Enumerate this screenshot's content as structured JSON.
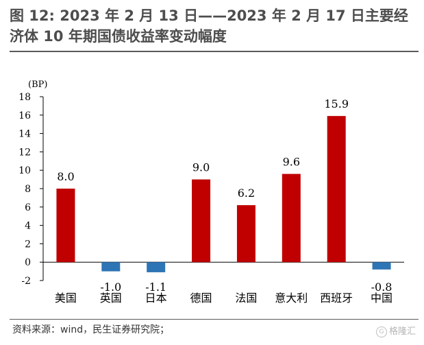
{
  "title": "图 12: 2023 年 2 月 13 日——2023 年 2 月 17 日主要经济体 10 年期国债收益率变动幅度",
  "source": "资料来源：wind，民生证券研究院；",
  "watermark": "格隆汇",
  "colors": {
    "positive": "#C00000",
    "negative": "#2E75B6",
    "axis": "#000000"
  },
  "chart_data": {
    "type": "bar",
    "categories": [
      "美国",
      "英国",
      "日本",
      "德国",
      "法国",
      "意大利",
      "西班牙",
      "中国"
    ],
    "values": [
      8.0,
      -1.0,
      -1.1,
      9.0,
      6.2,
      9.6,
      15.9,
      -0.8
    ],
    "value_labels": [
      "8.0",
      "-1.0",
      "-1.1",
      "9.0",
      "6.2",
      "9.6",
      "15.9",
      "-0.8"
    ],
    "unit_label": "(BP)",
    "ylim": [
      -2,
      18
    ],
    "yticks": [
      -2,
      0,
      2,
      4,
      6,
      8,
      10,
      12,
      14,
      16,
      18
    ],
    "grid": false,
    "legend": "none"
  }
}
